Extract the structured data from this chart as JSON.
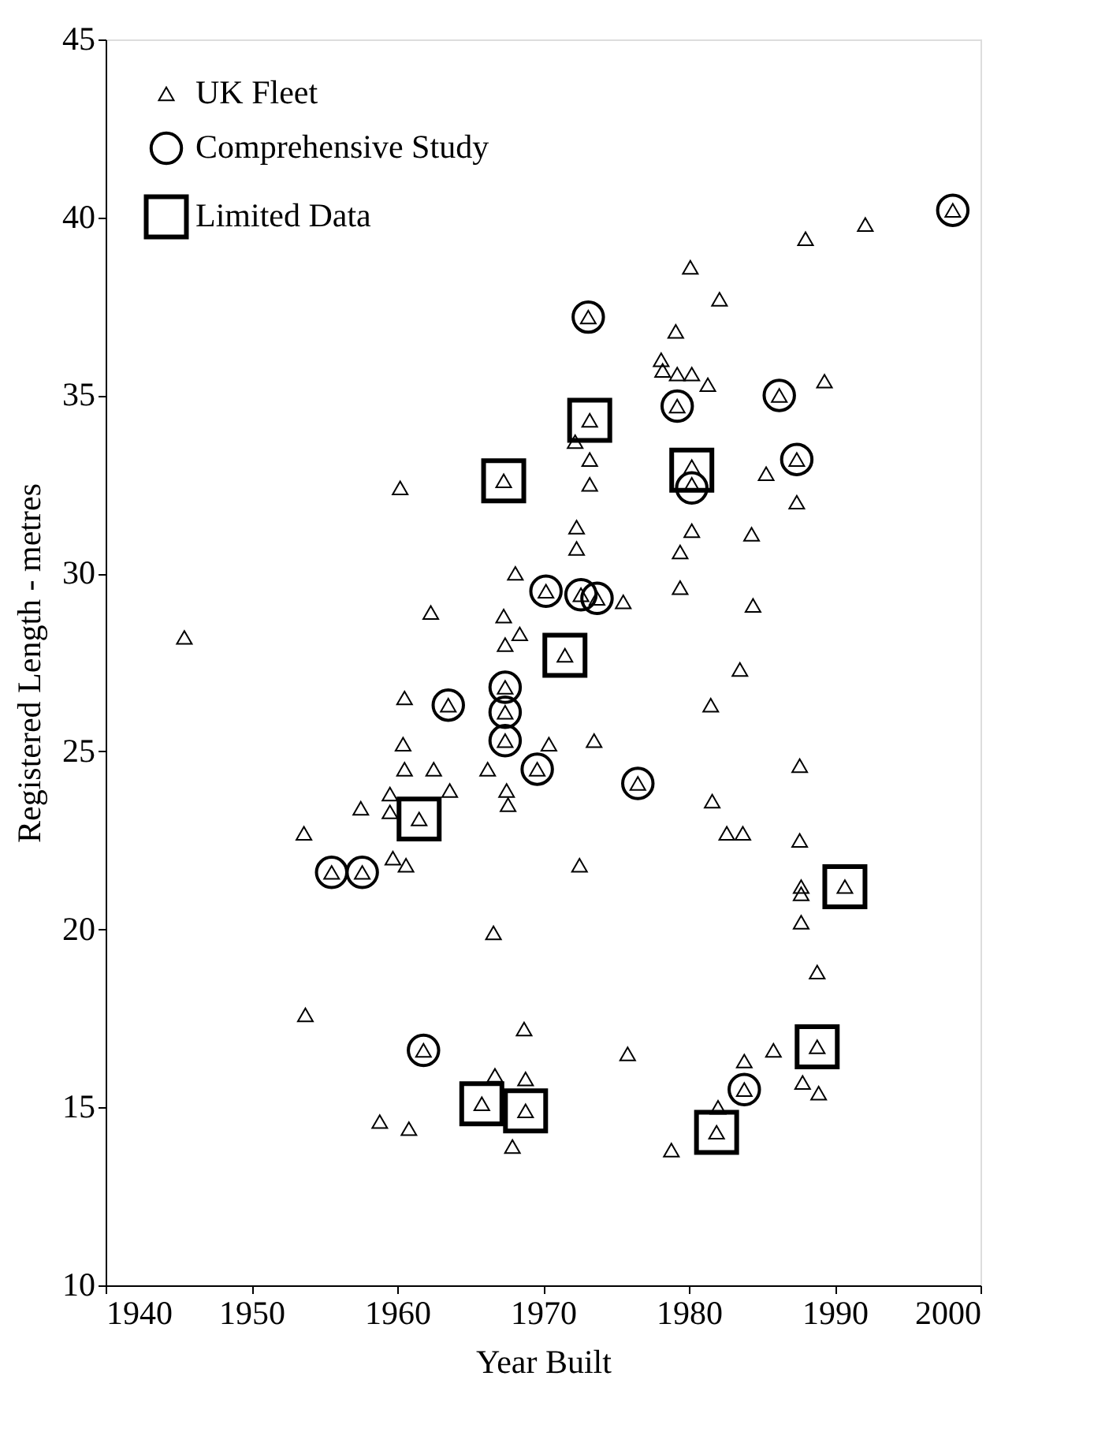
{
  "chart_data": {
    "type": "scatter",
    "xlabel": "Year Built",
    "ylabel": "Registered Length - metres",
    "xlim": [
      1940,
      2000
    ],
    "xticks": [
      1940,
      1950,
      1960,
      1970,
      1980,
      1990,
      2000
    ],
    "ylim": [
      10,
      45
    ],
    "yticks": [
      10,
      15,
      20,
      25,
      30,
      35,
      40,
      45
    ],
    "grid": false,
    "legend": "top left",
    "series": [
      {
        "name": "UK Fleet",
        "color": "#000000",
        "marker": "triangle",
        "x": [
          1945.4,
          1953.6,
          1953.7,
          1955.5,
          1957.6,
          1957.5,
          1958.8,
          1959.5,
          1959.5,
          1959.7,
          1960.2,
          1960.4,
          1960.5,
          1960.5,
          1960.6,
          1960.8,
          1961.5,
          1961.8,
          1962.3,
          1962.5,
          1963.5,
          1963.6,
          1965.8,
          1966.2,
          1966.6,
          1966.7,
          1967.3,
          1967.3,
          1967.4,
          1967.4,
          1967.4,
          1967.4,
          1967.5,
          1967.6,
          1967.9,
          1968.1,
          1968.4,
          1968.7,
          1968.8,
          1968.8,
          1969.6,
          1970.2,
          1970.4,
          1971.5,
          1972.2,
          1972.3,
          1972.3,
          1972.5,
          1972.6,
          1973.1,
          1973.2,
          1973.2,
          1973.2,
          1973.5,
          1973.7,
          1975.5,
          1975.8,
          1976.5,
          1978.1,
          1978.2,
          1978.8,
          1979.1,
          1979.2,
          1979.2,
          1979.4,
          1979.4,
          1980.1,
          1980.2,
          1980.2,
          1980.2,
          1980.2,
          1981.3,
          1981.5,
          1981.6,
          1981.9,
          1982.0,
          1982.1,
          1982.6,
          1983.5,
          1983.7,
          1983.8,
          1983.8,
          1984.3,
          1984.4,
          1985.3,
          1985.8,
          1986.2,
          1987.4,
          1987.4,
          1987.6,
          1987.6,
          1987.7,
          1987.7,
          1987.7,
          1987.8,
          1988.0,
          1988.8,
          1988.8,
          1988.9,
          1989.3,
          1990.7,
          1992.1,
          1998.1
        ],
        "values": [
          28.2,
          22.7,
          17.6,
          21.6,
          21.6,
          23.4,
          14.6,
          23.8,
          23.3,
          22.0,
          32.4,
          25.2,
          26.5,
          24.5,
          21.8,
          14.4,
          23.1,
          16.6,
          28.9,
          24.5,
          26.3,
          23.9,
          15.1,
          24.5,
          19.9,
          15.9,
          32.6,
          28.8,
          28.0,
          26.8,
          26.1,
          25.3,
          23.9,
          23.5,
          13.9,
          30.0,
          28.3,
          17.2,
          15.8,
          14.9,
          24.5,
          29.5,
          25.2,
          27.7,
          33.7,
          31.3,
          30.7,
          21.8,
          29.4,
          37.2,
          34.3,
          33.2,
          32.5,
          25.3,
          29.3,
          29.2,
          16.5,
          24.1,
          36.0,
          35.7,
          13.8,
          36.8,
          35.6,
          34.7,
          30.6,
          29.6,
          38.6,
          35.6,
          33.0,
          32.5,
          31.2,
          35.3,
          26.3,
          23.6,
          14.3,
          15.0,
          37.7,
          22.7,
          27.3,
          22.7,
          16.3,
          15.5,
          31.1,
          29.1,
          32.8,
          16.6,
          35.0,
          33.2,
          32.0,
          24.6,
          22.5,
          21.2,
          21.0,
          20.2,
          15.7,
          39.4,
          16.7,
          18.8,
          15.4,
          35.4,
          21.2,
          39.8,
          40.2
        ]
      },
      {
        "name": "Comprehensive Study",
        "color": "#000000",
        "marker": "circle",
        "x": [
          1955.5,
          1957.6,
          1961.8,
          1963.5,
          1967.4,
          1967.4,
          1967.4,
          1969.6,
          1970.2,
          1972.6,
          1973.1,
          1973.7,
          1976.5,
          1979.2,
          1980.2,
          1983.8,
          1986.2,
          1987.4,
          1998.1
        ],
        "values": [
          21.6,
          21.6,
          16.6,
          26.3,
          26.8,
          26.1,
          25.3,
          24.5,
          29.5,
          29.4,
          37.2,
          29.3,
          24.1,
          34.7,
          32.4,
          15.5,
          35.0,
          33.2,
          40.2
        ]
      },
      {
        "name": "Limited Data",
        "color": "#000000",
        "marker": "square",
        "x": [
          1961.5,
          1965.8,
          1967.3,
          1968.8,
          1971.5,
          1973.2,
          1980.2,
          1981.9,
          1988.8,
          1990.7
        ],
        "values": [
          23.1,
          15.1,
          32.6,
          14.9,
          27.7,
          34.3,
          32.9,
          14.3,
          16.7,
          21.2
        ]
      }
    ]
  }
}
